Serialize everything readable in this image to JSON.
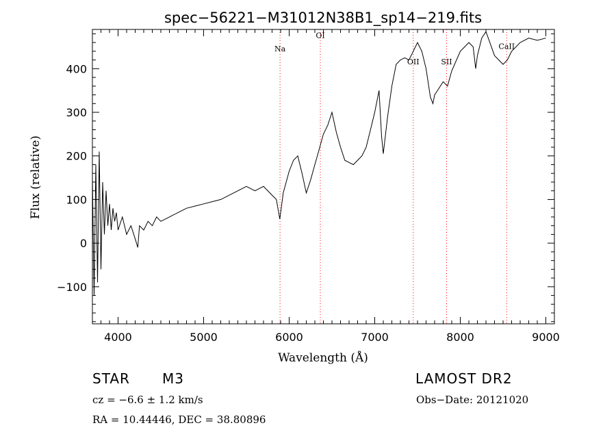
{
  "chart_data": {
    "type": "line",
    "title": "spec−56221−M31012N38B1_sp14−219.fits",
    "xlabel": "Wavelength (Å)",
    "ylabel": "Flux (relative)",
    "xlim": [
      3700,
      9100
    ],
    "ylim": [
      -185,
      490
    ],
    "xticks": [
      4000,
      5000,
      6000,
      7000,
      8000,
      9000
    ],
    "xtick_labels": [
      "4000",
      "5000",
      "6000",
      "7000",
      "8000",
      "9000"
    ],
    "yticks": [
      -100,
      0,
      100,
      200,
      300,
      400
    ],
    "ytick_labels": [
      "−100",
      "0",
      "100",
      "200",
      "300",
      "400"
    ],
    "line_color": "#000000",
    "marker_color": "#ff0000",
    "series": [
      {
        "x": [
          3700,
          3720,
          3740,
          3760,
          3780,
          3800,
          3820,
          3840,
          3860,
          3880,
          3900,
          3920,
          3940,
          3960,
          3980,
          4000,
          4050,
          4100,
          4150,
          4200,
          4230,
          4250,
          4300,
          4350,
          4400,
          4450,
          4500,
          4600,
          4700,
          4800,
          4900,
          5000,
          5100,
          5200,
          5300,
          5400,
          5500,
          5600,
          5700,
          5800,
          5850,
          5890,
          5930,
          6000,
          6050,
          6100,
          6150,
          6200,
          6250,
          6300,
          6350,
          6400,
          6450,
          6500,
          6550,
          6600,
          6650,
          6700,
          6750,
          6800,
          6850,
          6900,
          6950,
          7000,
          7050,
          7080,
          7100,
          7150,
          7200,
          7250,
          7300,
          7350,
          7400,
          7450,
          7500,
          7550,
          7600,
          7650,
          7680,
          7700,
          7750,
          7800,
          7850,
          7900,
          8000,
          8050,
          8100,
          8150,
          8180,
          8200,
          8250,
          8300,
          8400,
          8500,
          8550,
          8600,
          8700,
          8800,
          8900,
          9000
        ],
        "values": [
          150,
          -120,
          180,
          -90,
          210,
          -60,
          140,
          20,
          120,
          40,
          90,
          30,
          80,
          50,
          70,
          30,
          60,
          20,
          40,
          10,
          -10,
          40,
          30,
          50,
          40,
          60,
          50,
          60,
          70,
          80,
          85,
          90,
          95,
          100,
          110,
          120,
          130,
          120,
          130,
          110,
          100,
          55,
          115,
          165,
          190,
          200,
          160,
          115,
          145,
          180,
          215,
          250,
          270,
          300,
          255,
          220,
          190,
          185,
          180,
          190,
          200,
          220,
          260,
          300,
          350,
          245,
          205,
          290,
          360,
          410,
          420,
          425,
          420,
          440,
          460,
          440,
          400,
          335,
          320,
          340,
          355,
          370,
          360,
          395,
          440,
          450,
          460,
          450,
          400,
          430,
          470,
          485,
          430,
          410,
          420,
          440,
          460,
          470,
          465,
          470
        ]
      }
    ],
    "annotations": [
      {
        "label": "Na",
        "x": 5893,
        "label_y": 440
      },
      {
        "label": "OI",
        "x": 6364,
        "label_y": 470
      },
      {
        "label": "OII",
        "x": 7450,
        "label_y": 410
      },
      {
        "label": "SII",
        "x": 7840,
        "label_y": 410
      },
      {
        "label": "CaII",
        "x": 8542,
        "label_y": 445
      }
    ],
    "grid": false,
    "legend": "none"
  },
  "info": {
    "object": "STAR",
    "subclass": "M3",
    "survey": "LAMOST DR2",
    "cz_text": "cz = −6.6 ± 1.2 km/s",
    "obs_date_text": "Obs−Date: 20121020",
    "radec_text": "RA =  10.44446, DEC =  38.80896"
  }
}
